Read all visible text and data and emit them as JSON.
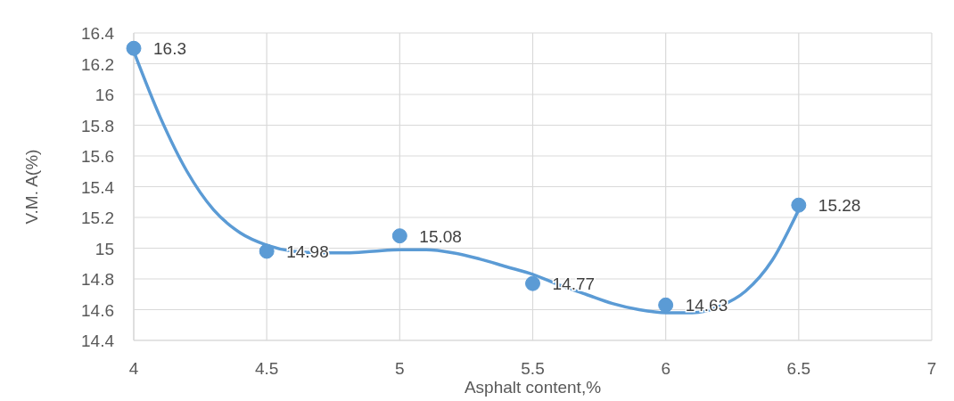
{
  "chart_data": {
    "type": "scatter",
    "xlabel": "Asphalt content,%",
    "ylabel": "V.M. A(%)",
    "xlim": [
      4,
      7
    ],
    "xticks": [
      4,
      4.5,
      5,
      5.5,
      6,
      6.5,
      7
    ],
    "ylim": [
      14.4,
      16.4
    ],
    "yticks": [
      14.4,
      14.6,
      14.8,
      15,
      15.2,
      15.4,
      15.6,
      15.8,
      16,
      16.2,
      16.4
    ],
    "grid": true,
    "x": [
      4,
      4.5,
      5,
      5.5,
      6,
      6.5
    ],
    "series": [
      {
        "type": "line",
        "color": "#5b9bd5",
        "x": [
          4,
          4.1,
          4.2,
          4.3,
          4.4,
          4.5,
          4.6,
          4.7,
          4.8,
          4.9,
          5,
          5.1,
          5.2,
          5.3,
          5.4,
          5.5,
          5.6,
          5.7,
          5.8,
          5.9,
          6,
          6.1,
          6.2,
          6.3,
          6.4,
          6.5
        ],
        "values": [
          16.28,
          15.85,
          15.5,
          15.25,
          15.1,
          15.02,
          14.98,
          14.97,
          14.97,
          14.98,
          14.99,
          14.99,
          14.97,
          14.93,
          14.88,
          14.83,
          14.76,
          14.7,
          14.64,
          14.6,
          14.58,
          14.58,
          14.62,
          14.72,
          14.92,
          15.25
        ]
      },
      {
        "color": "#5b9bd5",
        "marker": "circle",
        "values": [
          16.3,
          14.98,
          15.08,
          14.77,
          14.63,
          15.28
        ],
        "value_labels": [
          "16.3",
          "14.98",
          "15.08",
          "14.77",
          "14.63",
          "15.28"
        ]
      }
    ]
  }
}
